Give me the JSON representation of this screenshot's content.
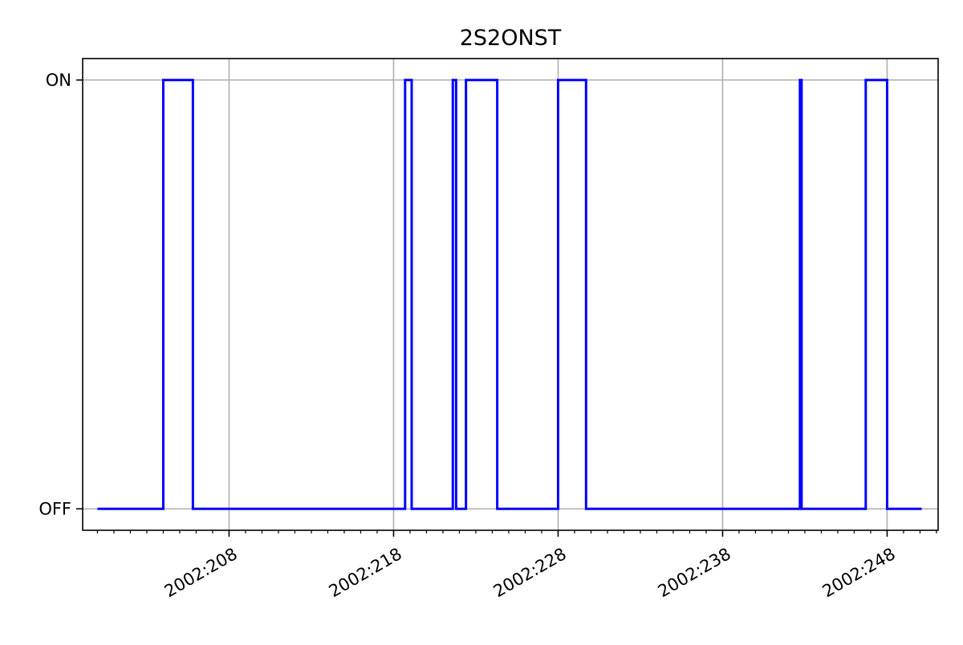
{
  "chart_data": {
    "type": "line",
    "title": "2S2ONST",
    "xlabel": "",
    "ylabel": "",
    "x_unit": "day of year 2002",
    "xlim": [
      199.1,
      251.1
    ],
    "ylim": [
      -0.05,
      1.05
    ],
    "grid": true,
    "y_categories": [
      "OFF",
      "ON"
    ],
    "x_ticks": [
      208,
      218,
      228,
      238,
      248
    ],
    "x_tick_labels": [
      "2002:208",
      "2002:218",
      "2002:228",
      "2002:238",
      "2002:248"
    ],
    "y_ticks": [
      0,
      1
    ],
    "y_tick_labels": [
      "OFF",
      "ON"
    ],
    "x_minor_step": 1,
    "series": [
      {
        "color": "#0000ff",
        "step": true,
        "points": [
          [
            200.0,
            0
          ],
          [
            204.0,
            1
          ],
          [
            205.8,
            0
          ],
          [
            218.7,
            1
          ],
          [
            219.1,
            0
          ],
          [
            221.6,
            1
          ],
          [
            221.8,
            0
          ],
          [
            222.4,
            1
          ],
          [
            224.3,
            0
          ],
          [
            228.0,
            1
          ],
          [
            229.7,
            0
          ],
          [
            242.7,
            1
          ],
          [
            242.8,
            0
          ],
          [
            246.7,
            1
          ],
          [
            248.0,
            0
          ],
          [
            250.1,
            0
          ]
        ]
      }
    ]
  }
}
